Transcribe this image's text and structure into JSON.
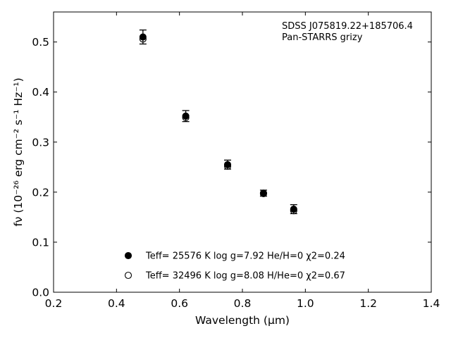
{
  "chart_data": {
    "type": "scatter",
    "title": "",
    "annotation_lines": [
      "SDSS J075819.22+185706.4",
      "Pan-STARRS grizy"
    ],
    "xlabel": "Wavelength (μm)",
    "ylabel": "fν (10⁻²⁶ erg cm⁻² s⁻¹ Hz⁻¹)",
    "xlim": [
      0.2,
      1.4
    ],
    "ylim": [
      0.0,
      0.56
    ],
    "x_ticks": [
      0.2,
      0.4,
      0.6,
      0.8,
      1.0,
      1.2,
      1.4
    ],
    "x_tick_labels": [
      "0.2",
      "0.4",
      "0.6",
      "0.8",
      "1.0",
      "1.2",
      "1.4"
    ],
    "y_ticks": [
      0.0,
      0.1,
      0.2,
      0.3,
      0.4,
      0.5
    ],
    "y_tick_labels": [
      "0.0",
      "0.1",
      "0.2",
      "0.3",
      "0.4",
      "0.5"
    ],
    "grid": false,
    "legend_placement": "bottom-center",
    "series": [
      {
        "label": "Teff= 25576 K  log g=7.92  He/H=0  χ2=0.24",
        "marker": "filled-circle",
        "color": "#000000",
        "points": [
          {
            "x": 0.484,
            "y": 0.51,
            "err": 0.014
          },
          {
            "x": 0.62,
            "y": 0.352,
            "err": 0.011
          },
          {
            "x": 0.753,
            "y": 0.255,
            "err": 0.009
          },
          {
            "x": 0.867,
            "y": 0.198,
            "err": 0.006
          },
          {
            "x": 0.963,
            "y": 0.166,
            "err": 0.009
          }
        ]
      },
      {
        "label": "Teff= 32496 K  log g=8.08  H/He=0  χ2=0.67",
        "marker": "open-circle",
        "color": "#000000",
        "points": [
          {
            "x": 0.484,
            "y": 0.506
          },
          {
            "x": 0.62,
            "y": 0.349
          },
          {
            "x": 0.753,
            "y": 0.252
          },
          {
            "x": 0.867,
            "y": 0.197
          },
          {
            "x": 0.963,
            "y": 0.163
          }
        ]
      }
    ]
  }
}
